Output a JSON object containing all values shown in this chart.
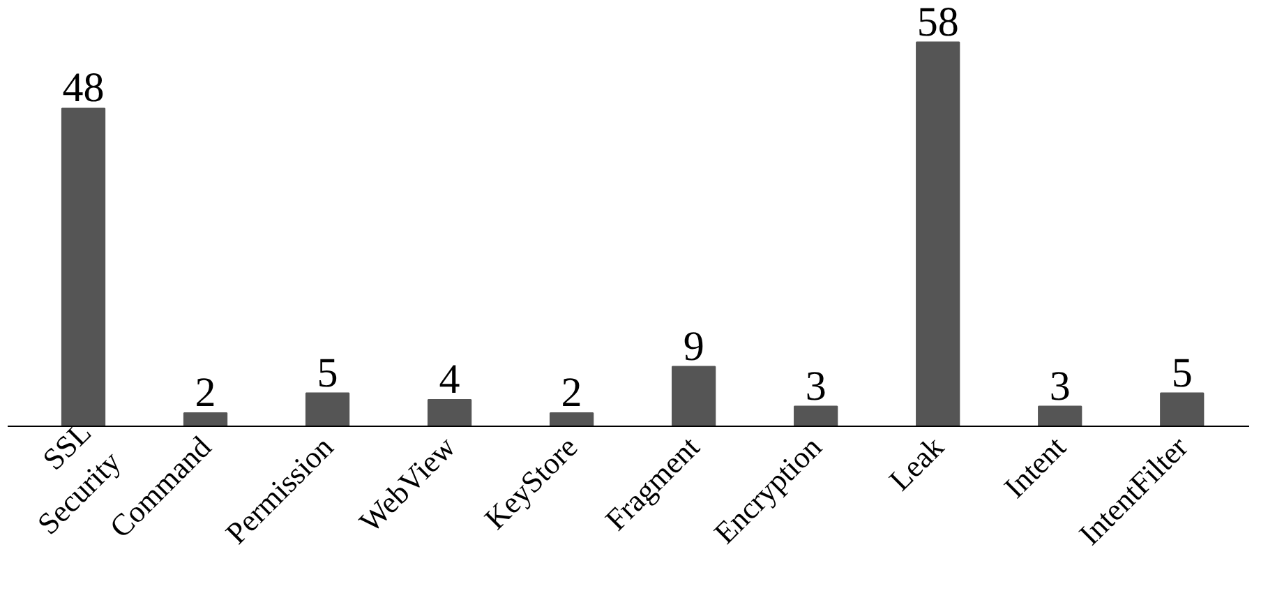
{
  "chart_data": {
    "type": "bar",
    "categories": [
      "SSL\nSecurity",
      "Command",
      "Permission",
      "WebView",
      "KeyStore",
      "Fragment",
      "Encryption",
      "Leak",
      "Intent",
      "IntentFilter"
    ],
    "values": [
      48,
      2,
      5,
      4,
      2,
      9,
      3,
      58,
      3,
      5
    ],
    "color": "#555555",
    "data_labels": true
  }
}
